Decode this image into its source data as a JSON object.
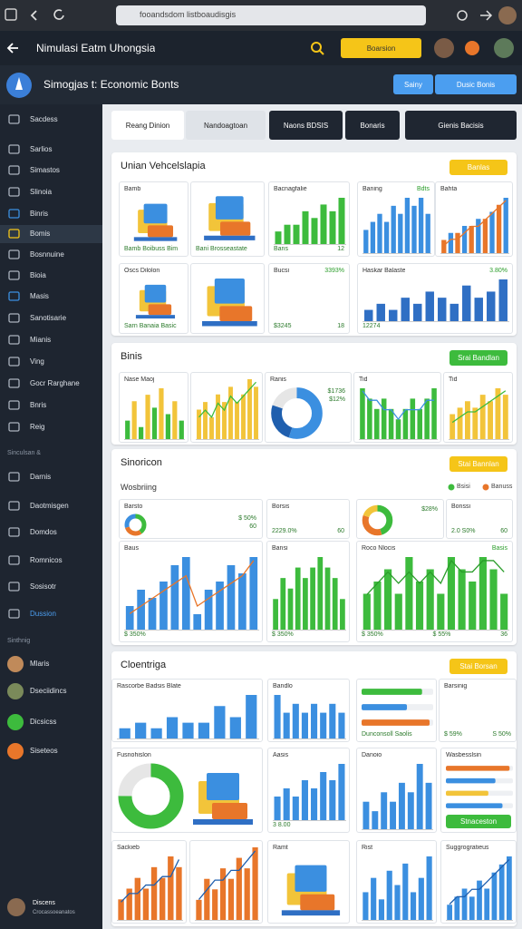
{
  "browser": {
    "url": "fooandsdom listboaudisgis"
  },
  "app": {
    "title": "Nimulasi Eatm Uhongsia",
    "button": "Boarsion"
  },
  "subheader": {
    "title": "Simogjas t: Economic Bonts",
    "buttons": [
      "Sainy",
      "Dusic Bonis"
    ]
  },
  "sidebar": {
    "items": [
      "Sacdess",
      "Sarlios",
      "Simastos",
      "Slinoia",
      "Binris",
      "Bomis",
      "Bosnnuine",
      "Bioia",
      "Masis",
      "Sanotisarie",
      "Mianis",
      "Ving",
      "Gocr Rarghane",
      "Bnris",
      "Reig"
    ],
    "section": "Sinculsan &",
    "items2": [
      "Darnis",
      "Daotmisgen",
      "Domdos",
      "Romnicos",
      "Sosisotr",
      "Dussion"
    ],
    "section2": "Sinthnig",
    "users": [
      "Mlaris",
      "Dseciidincs",
      "Dicsicss",
      "Siseteos"
    ],
    "footer": {
      "name": "Discens",
      "sub": "Crocassoeanatos"
    }
  },
  "tabs": [
    "Reang Dinion",
    "Nandoagtoan",
    "Naons BDSIS",
    "Bonaris",
    "Gienis Bacisis"
  ],
  "sections": [
    {
      "title": "Unian Vehcelslapia",
      "button": "Banlas",
      "cards": [
        {
          "title": "Bamb",
          "lines": [
            "Bamb Boibuss Bim"
          ]
        },
        {
          "lines": [
            "Bani Brosseastate"
          ]
        },
        {
          "title": "Bacnagfalie",
          "lines": [
            "Bans",
            "12"
          ],
          "chart": {
            "type": "bar",
            "colors": [
              "#3dbb3d"
            ],
            "values": [
              2,
              3,
              3,
              5,
              4,
              6,
              5,
              7
            ]
          }
        },
        {
          "title": "Baning",
          "badge": "Bdts",
          "chart": {
            "type": "bar",
            "colors": [
              "#3b8fe0"
            ],
            "values": [
              3,
              4,
              5,
              4,
              6,
              5,
              7,
              6,
              7,
              5
            ]
          }
        },
        {
          "title": "Bahta",
          "chart": {
            "type": "combo",
            "colors": [
              "#e8762a",
              "#3b8fe0"
            ],
            "values": [
              2,
              3,
              3,
              4,
              4,
              5,
              5,
              6,
              7,
              8
            ],
            "line": [
              1,
              2,
              2,
              3,
              4,
              4,
              5,
              6,
              7,
              8
            ],
            "line_color": "#e8762a"
          }
        },
        {
          "title": "Oscs Dilolon",
          "lines": [
            "Sarn Banaia Basic"
          ]
        },
        {},
        {
          "title": "Bucsi",
          "badge": "3393%",
          "lines": [
            "$3245",
            "18"
          ]
        },
        {
          "title": "Haskar Balaste",
          "badge": "3.80%",
          "lines": [
            "12274"
          ],
          "chart": {
            "type": "bar",
            "colors": [
              "#2f6fc4"
            ],
            "values": [
              2,
              3,
              2,
              4,
              3,
              5,
              4,
              3,
              6,
              4,
              5,
              7
            ]
          }
        }
      ]
    },
    {
      "title": "Binis",
      "button": "Srai Bandlan",
      "cards": [
        {
          "title": "Nase Maoj",
          "chart": {
            "type": "bar",
            "colors": [
              "#3dbb3d",
              "#f2c43a"
            ],
            "values": [
              3,
              6,
              2,
              7,
              5,
              8,
              4,
              6,
              3
            ]
          }
        },
        {
          "chart": {
            "type": "combo",
            "colors": [
              "#f2c43a"
            ],
            "values": [
              4,
              5,
              3,
              6,
              5,
              7,
              5,
              6,
              8,
              7
            ],
            "line": [
              3,
              4,
              3,
              5,
              4,
              6,
              5,
              6,
              7,
              8
            ],
            "line_color": "#3dbb3d"
          }
        },
        {
          "title": "Ranis",
          "lines": [
            "$1736",
            "$12%"
          ],
          "chart": {
            "type": "donut",
            "colors": [
              "#3b8fe0",
              "#1f5fae",
              "#e6e6e6"
            ],
            "values": [
              55,
              25,
              20
            ]
          }
        },
        {
          "title": "Tid",
          "chart": {
            "type": "combo",
            "colors": [
              "#3dbb3d"
            ],
            "values": [
              5,
              4,
              3,
              4,
              3,
              2,
              3,
              4,
              3,
              4,
              5
            ],
            "line": [
              5,
              4,
              4,
              3,
              3,
              2,
              3,
              3,
              3,
              4,
              4
            ],
            "line_color": "#3b8fe0"
          }
        },
        {
          "title": "Tid",
          "chart": {
            "type": "combo",
            "colors": [
              "#f2c43a"
            ],
            "values": [
              4,
              5,
              6,
              5,
              7,
              6,
              8,
              7
            ],
            "line": [
              3,
              4,
              5,
              5,
              6,
              7,
              8,
              9
            ],
            "line_color": "#3dbb3d"
          }
        }
      ]
    },
    {
      "title": "Sinoricon",
      "button": "Stai Bannlan",
      "subtitle": "Wosbriing",
      "legend": [
        {
          "name": "Bsisi",
          "color": "#3dbb3d"
        },
        {
          "name": "Banuss",
          "color": "#e8762a"
        }
      ],
      "cards": [
        {
          "title": "Barsto",
          "lines": [
            "$ 50%",
            "60"
          ],
          "chart": {
            "type": "donut",
            "colors": [
              "#3dbb3d",
              "#e8762a",
              "#3b8fe0"
            ],
            "values": [
              40,
              30,
              30
            ]
          }
        },
        {
          "title": "Borsis",
          "lines": [
            "2229.0%",
            "60"
          ]
        },
        {
          "lines": [
            "$28%"
          ],
          "chart": {
            "type": "donut",
            "colors": [
              "#3dbb3d",
              "#e8762a",
              "#f2c43a"
            ],
            "values": [
              45,
              35,
              20
            ]
          }
        },
        {
          "title": "Bonssi",
          "lines": [
            "2.0 S0%",
            "60"
          ]
        },
        {
          "title": "Baus",
          "lines": [
            "$ 350%"
          ],
          "chart": {
            "type": "combo",
            "colors": [
              "#3b8fe0"
            ],
            "values": [
              3,
              5,
              4,
              6,
              8,
              9,
              2,
              5,
              6,
              8,
              7,
              9
            ],
            "line": [
              2,
              3,
              4,
              5,
              6,
              7,
              3,
              4,
              5,
              6,
              7,
              9
            ],
            "line_color": "#e8762a"
          }
        },
        {
          "title": "Bansi",
          "lines": [
            "$ 350%"
          ],
          "chart": {
            "type": "bar",
            "colors": [
              "#3dbb3d"
            ],
            "values": [
              3,
              5,
              4,
              6,
              5,
              6,
              7,
              6,
              5,
              3
            ]
          }
        },
        {
          "title": "Roco Nlocis",
          "badge": "Basis",
          "lines": [
            "$ 350%",
            "$ 55%",
            "36"
          ],
          "chart": {
            "type": "combo",
            "colors": [
              "#3dbb3d"
            ],
            "values": [
              3,
              4,
              5,
              3,
              6,
              4,
              5,
              3,
              6,
              5,
              4,
              6,
              5,
              3
            ],
            "line": [
              3,
              4,
              5,
              4,
              5,
              4,
              5,
              4,
              6,
              5,
              5,
              6,
              6,
              5
            ],
            "line_color": "#2a9d2a"
          }
        }
      ]
    },
    {
      "title": "Cloentriga",
      "button": "Stai Borsan",
      "cards": [
        {
          "title": "Rascorbe Badsis Blate",
          "chart": {
            "type": "bar",
            "colors": [
              "#3b8fe0"
            ],
            "values": [
              2,
              3,
              2,
              4,
              3,
              3,
              6,
              4,
              8
            ]
          }
        },
        {
          "title": "Bandlo",
          "chart": {
            "type": "bar",
            "colors": [
              "#3b8fe0"
            ],
            "values": [
              5,
              3,
              4,
              3,
              4,
              3,
              4,
              3
            ]
          }
        },
        {
          "lines": [
            "Dunconsoll Saolis"
          ],
          "chart": {
            "type": "hbar",
            "colors": [
              "#3dbb3d",
              "#3b8fe0",
              "#e8762a"
            ],
            "values": [
              80,
              60,
              90
            ]
          }
        },
        {
          "title": "Barsinig",
          "lines": [
            "$ 59%",
            "S 50%"
          ]
        },
        {
          "title": "Fusnohislon",
          "chart": {
            "type": "donut",
            "colors": [
              "#3dbb3d",
              "#e6e6e6"
            ],
            "values": [
              75,
              25
            ]
          }
        },
        {
          "title": "Aasis",
          "lines": [
            "3 8.00"
          ],
          "chart": {
            "type": "bar",
            "colors": [
              "#3b8fe0"
            ],
            "values": [
              3,
              4,
              3,
              5,
              4,
              6,
              5,
              7
            ]
          }
        },
        {
          "title": "Danoio",
          "chart": {
            "type": "bar",
            "colors": [
              "#3b8fe0"
            ],
            "values": [
              3,
              2,
              4,
              3,
              5,
              4,
              7,
              5
            ]
          }
        },
        {
          "title": "Wasbesslsin",
          "button": "Stnaceston",
          "chart": {
            "type": "hbar",
            "colors": [
              "#e8762a",
              "#3b8fe0",
              "#f2c43a",
              "#3b8fe0"
            ],
            "values": [
              90,
              70,
              60,
              80
            ]
          }
        },
        {
          "title": "Sackieb",
          "chart": {
            "type": "combo",
            "colors": [
              "#e8762a"
            ],
            "values": [
              2,
              3,
              4,
              3,
              5,
              4,
              6,
              5
            ],
            "line": [
              2,
              3,
              3,
              4,
              4,
              5,
              5,
              7
            ],
            "line_color": "#1f5fae"
          }
        },
        {
          "chart": {
            "type": "combo",
            "colors": [
              "#e8762a"
            ],
            "values": [
              2,
              4,
              3,
              5,
              4,
              6,
              5,
              7
            ],
            "line": [
              2,
              3,
              4,
              4,
              5,
              5,
              6,
              7
            ],
            "line_color": "#1f5fae"
          }
        },
        {
          "title": "Ramt"
        },
        {
          "title": "Rist",
          "chart": {
            "type": "bar",
            "colors": [
              "#3b8fe0"
            ],
            "values": [
              4,
              6,
              3,
              7,
              5,
              8,
              4,
              6,
              9
            ]
          }
        },
        {
          "title": "Suggrogratieus",
          "chart": {
            "type": "combo",
            "colors": [
              "#3b8fe0"
            ],
            "values": [
              2,
              3,
              4,
              3,
              5,
              4,
              6,
              7,
              8
            ],
            "line": [
              2,
              3,
              3,
              4,
              4,
              5,
              6,
              7,
              8
            ],
            "line_color": "#1f5fae"
          }
        }
      ]
    }
  ]
}
